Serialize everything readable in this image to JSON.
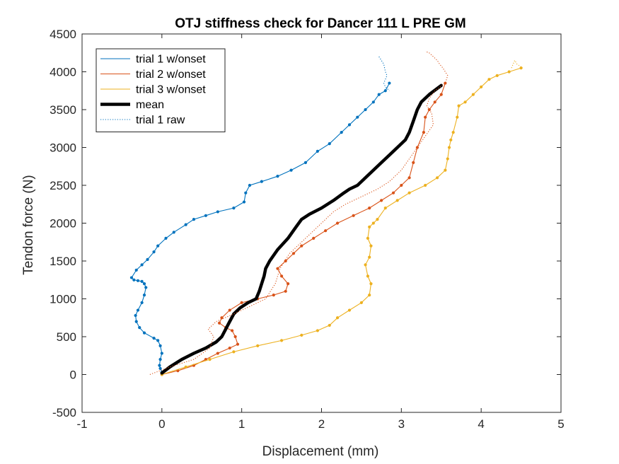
{
  "chart_data": {
    "type": "line",
    "title": "OTJ stiffness check for Dancer 111 L PRE GM",
    "xlabel": "Displacement (mm)",
    "ylabel": "Tendon force (N)",
    "xlim": [
      -1,
      5
    ],
    "ylim": [
      -500,
      4500
    ],
    "xticks": [
      -1,
      0,
      1,
      2,
      3,
      4,
      5
    ],
    "yticks": [
      -500,
      0,
      500,
      1000,
      1500,
      2000,
      2500,
      3000,
      3500,
      4000,
      4500
    ],
    "grid": false,
    "legend_location": "top-left",
    "colors": {
      "trial1": "#0072BD",
      "trial2": "#D95319",
      "trial3": "#EDB120",
      "mean": "#000000",
      "axis": "#262626"
    },
    "series": [
      {
        "name": "trial 1 w/onset",
        "color": "#0072BD",
        "style": "solid-markers",
        "x": [
          0.0,
          -0.02,
          -0.03,
          -0.02,
          0.0,
          -0.02,
          -0.05,
          -0.1,
          -0.22,
          -0.28,
          -0.32,
          -0.33,
          -0.3,
          -0.25,
          -0.22,
          -0.2,
          -0.22,
          -0.25,
          -0.3,
          -0.35,
          -0.38,
          -0.32,
          -0.25,
          -0.18,
          -0.1,
          -0.05,
          0.05,
          0.15,
          0.3,
          0.4,
          0.55,
          0.7,
          0.9,
          1.03,
          1.05,
          1.1,
          1.25,
          1.45,
          1.62,
          1.8,
          1.95,
          2.1,
          2.25,
          2.35,
          2.45,
          2.55,
          2.65,
          2.72,
          2.8,
          2.85
        ],
        "y": [
          30,
          80,
          120,
          200,
          280,
          380,
          450,
          480,
          550,
          620,
          700,
          780,
          850,
          950,
          1050,
          1150,
          1200,
          1230,
          1240,
          1250,
          1280,
          1380,
          1450,
          1520,
          1620,
          1700,
          1800,
          1880,
          1980,
          2050,
          2100,
          2150,
          2200,
          2280,
          2400,
          2500,
          2550,
          2620,
          2700,
          2800,
          2950,
          3050,
          3200,
          3300,
          3400,
          3500,
          3600,
          3700,
          3750,
          3850
        ]
      },
      {
        "name": "trial 2 w/onset",
        "color": "#D95319",
        "style": "solid-markers",
        "x": [
          0.0,
          0.2,
          0.4,
          0.55,
          0.7,
          0.85,
          0.95,
          0.92,
          0.88,
          0.8,
          0.72,
          0.75,
          0.85,
          1.0,
          1.2,
          1.4,
          1.55,
          1.58,
          1.5,
          1.45,
          1.55,
          1.65,
          1.75,
          1.9,
          2.05,
          2.2,
          2.4,
          2.6,
          2.75,
          2.9,
          3.0,
          3.1,
          3.15,
          3.2,
          3.28,
          3.3,
          3.35,
          3.42,
          3.5,
          3.55
        ],
        "y": [
          0,
          50,
          120,
          200,
          280,
          350,
          400,
          500,
          580,
          620,
          680,
          750,
          850,
          950,
          1000,
          1050,
          1100,
          1200,
          1300,
          1400,
          1500,
          1600,
          1700,
          1800,
          1900,
          2000,
          2100,
          2200,
          2300,
          2400,
          2500,
          2600,
          2800,
          3000,
          3200,
          3400,
          3500,
          3600,
          3700,
          3850
        ]
      },
      {
        "name": "trial 3 w/onset",
        "color": "#EDB120",
        "style": "solid-markers",
        "x": [
          0.0,
          0.3,
          0.6,
          0.9,
          1.2,
          1.5,
          1.75,
          1.95,
          2.1,
          2.2,
          2.35,
          2.5,
          2.6,
          2.62,
          2.58,
          2.55,
          2.6,
          2.62,
          2.58,
          2.6,
          2.65,
          2.7,
          2.8,
          2.95,
          3.1,
          3.3,
          3.45,
          3.55,
          3.58,
          3.6,
          3.62,
          3.65,
          3.7,
          3.72,
          3.8,
          3.9,
          4.0,
          4.1,
          4.2,
          4.35,
          4.5
        ],
        "y": [
          0,
          100,
          200,
          300,
          380,
          450,
          520,
          580,
          650,
          750,
          850,
          950,
          1050,
          1200,
          1300,
          1450,
          1550,
          1700,
          1800,
          1950,
          2000,
          2050,
          2200,
          2300,
          2400,
          2500,
          2600,
          2700,
          2850,
          3000,
          3100,
          3200,
          3400,
          3550,
          3600,
          3700,
          3800,
          3900,
          3950,
          4000,
          4050
        ]
      },
      {
        "name": "mean",
        "color": "#000000",
        "style": "thick",
        "x": [
          0.0,
          0.1,
          0.25,
          0.4,
          0.55,
          0.68,
          0.75,
          0.8,
          0.85,
          0.9,
          0.98,
          1.08,
          1.18,
          1.22,
          1.25,
          1.28,
          1.3,
          1.35,
          1.45,
          1.58,
          1.68,
          1.75,
          1.85,
          2.0,
          2.15,
          2.28,
          2.35,
          2.45,
          2.55,
          2.65,
          2.75,
          2.85,
          2.95,
          3.05,
          3.1,
          3.15,
          3.2,
          3.25,
          3.35,
          3.45,
          3.5
        ],
        "y": [
          20,
          100,
          200,
          280,
          350,
          430,
          500,
          600,
          700,
          800,
          880,
          950,
          1000,
          1100,
          1200,
          1300,
          1400,
          1500,
          1650,
          1800,
          1950,
          2050,
          2120,
          2200,
          2300,
          2400,
          2450,
          2500,
          2600,
          2700,
          2800,
          2900,
          3000,
          3100,
          3200,
          3350,
          3500,
          3600,
          3700,
          3780,
          3820
        ]
      },
      {
        "name": "trial 1 raw",
        "color": "#0072BD",
        "style": "dotted",
        "x": [
          2.72,
          2.75,
          2.78,
          2.8,
          2.82,
          2.8,
          2.78,
          2.8,
          2.85
        ],
        "y": [
          4200,
          4150,
          4100,
          4000,
          3950,
          3900,
          3850,
          3800,
          3750
        ]
      },
      {
        "name": "",
        "color": "#D95319",
        "style": "dotted",
        "x": [
          -0.15,
          0.1,
          0.4,
          0.6,
          0.65,
          0.58,
          0.68,
          0.9,
          1.1,
          1.3,
          1.42,
          1.48,
          1.6,
          1.8,
          2.0,
          2.15,
          2.3,
          2.5,
          2.7,
          2.85,
          3.0,
          3.1,
          3.2,
          3.3,
          3.4,
          3.38,
          3.32,
          3.35,
          3.42,
          3.55,
          3.58,
          3.52,
          3.48,
          3.45,
          3.4,
          3.35,
          3.3
        ],
        "y": [
          0,
          100,
          200,
          350,
          500,
          600,
          700,
          800,
          900,
          1000,
          1200,
          1400,
          1600,
          1800,
          2000,
          2150,
          2250,
          2350,
          2450,
          2550,
          2700,
          2850,
          3000,
          3150,
          3300,
          3450,
          3550,
          3650,
          3750,
          3850,
          3950,
          4050,
          4100,
          4150,
          4200,
          4250,
          4270
        ]
      },
      {
        "name": "",
        "color": "#EDB120",
        "style": "dotted",
        "x": [
          4.38,
          4.4,
          4.42,
          4.45,
          4.48,
          4.52
        ],
        "y": [
          4050,
          4100,
          4150,
          4100,
          4080,
          4050
        ]
      }
    ]
  }
}
